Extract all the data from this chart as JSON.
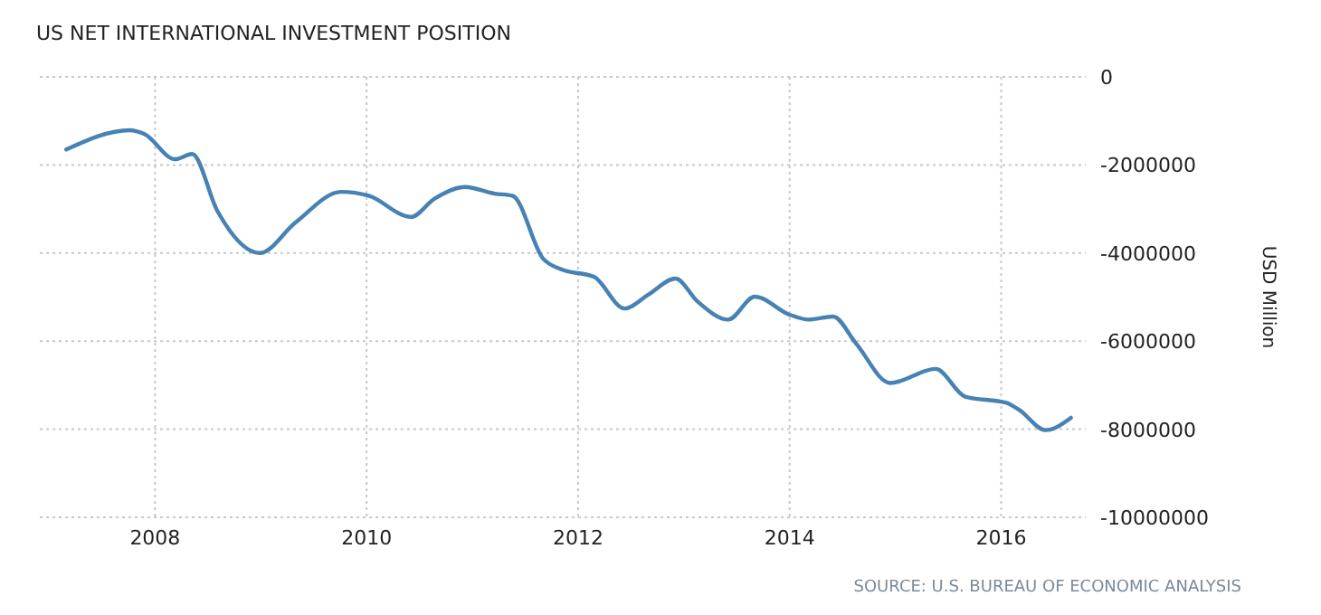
{
  "chart_data": {
    "type": "line",
    "title": "US NET INTERNATIONAL INVESTMENT POSITION",
    "ylabel": "USD Million",
    "annotations": [
      "SOURCE: U.S. BUREAU OF ECONOMIC ANALYSIS"
    ],
    "x": [
      2007.16,
      2007.76,
      2007.9,
      2008.19,
      2008.35,
      2008.59,
      2008.99,
      2009.33,
      2009.76,
      2010.02,
      2010.42,
      2010.64,
      2010.93,
      2011.21,
      2011.38,
      2011.67,
      2011.84,
      2012.15,
      2012.44,
      2012.66,
      2012.92,
      2013.13,
      2013.42,
      2013.67,
      2014.0,
      2014.18,
      2014.41,
      2014.63,
      2014.95,
      2015.38,
      2015.66,
      2016.05,
      2016.17,
      2016.42,
      2016.66
    ],
    "series": [
      {
        "color": "#4682b4",
        "values": [
          -1650000,
          -1210000,
          -1300000,
          -1870000,
          -1750000,
          -3050000,
          -4000000,
          -3300000,
          -2610000,
          -2700000,
          -3180000,
          -2770000,
          -2500000,
          -2650000,
          -2700000,
          -4130000,
          -4370000,
          -4540000,
          -5260000,
          -4950000,
          -4580000,
          -5100000,
          -5510000,
          -4990000,
          -5400000,
          -5510000,
          -5440000,
          -6060000,
          -6950000,
          -6630000,
          -7260000,
          -7400000,
          -7560000,
          -8020000,
          -7740000
        ]
      }
    ],
    "xlim": [
      2006.91,
      2016.8
    ],
    "xticks": [
      2008,
      2010,
      2012,
      2014,
      2016
    ],
    "ylim": [
      -10000000,
      0
    ],
    "yticks": [
      0,
      -2000000,
      -4000000,
      -6000000,
      -8000000,
      -10000000
    ],
    "grid": true,
    "marker": "none",
    "line_style": "solid"
  }
}
